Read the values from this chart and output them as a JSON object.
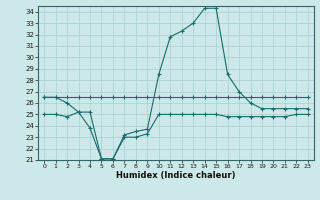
{
  "title": "",
  "xlabel": "Humidex (Indice chaleur)",
  "background_color": "#cce8e8",
  "grid_color": "#aacfcf",
  "line_color": "#1a6b6b",
  "x": [
    0,
    1,
    2,
    3,
    4,
    5,
    6,
    7,
    8,
    9,
    10,
    11,
    12,
    13,
    14,
    15,
    16,
    17,
    18,
    19,
    20,
    21,
    22,
    23
  ],
  "line_upper": [
    26.5,
    26.5,
    26.5,
    26.5,
    26.5,
    26.5,
    26.5,
    26.5,
    26.5,
    26.5,
    26.5,
    26.5,
    26.5,
    26.5,
    26.5,
    26.5,
    26.5,
    26.5,
    26.5,
    26.5,
    26.5,
    26.5,
    26.5,
    26.5
  ],
  "line_main": [
    26.5,
    26.5,
    26.0,
    25.2,
    23.8,
    21.1,
    21.1,
    23.2,
    23.5,
    23.7,
    28.5,
    31.8,
    32.3,
    33.0,
    34.3,
    34.3,
    28.5,
    27.0,
    26.0,
    25.5,
    25.5,
    25.5,
    25.5,
    25.5
  ],
  "line_lower": [
    25.0,
    25.0,
    24.8,
    25.2,
    25.2,
    21.1,
    21.1,
    23.0,
    23.0,
    23.3,
    25.0,
    25.0,
    25.0,
    25.0,
    25.0,
    25.0,
    24.8,
    24.8,
    24.8,
    24.8,
    24.8,
    24.8,
    25.0,
    25.0
  ],
  "ylim": [
    21.0,
    34.5
  ],
  "yticks": [
    21,
    22,
    23,
    24,
    25,
    26,
    27,
    28,
    29,
    30,
    31,
    32,
    33,
    34
  ],
  "xticks": [
    0,
    1,
    2,
    3,
    4,
    5,
    6,
    7,
    8,
    9,
    10,
    11,
    12,
    13,
    14,
    15,
    16,
    17,
    18,
    19,
    20,
    21,
    22,
    23
  ],
  "xlim": [
    -0.5,
    23.5
  ]
}
